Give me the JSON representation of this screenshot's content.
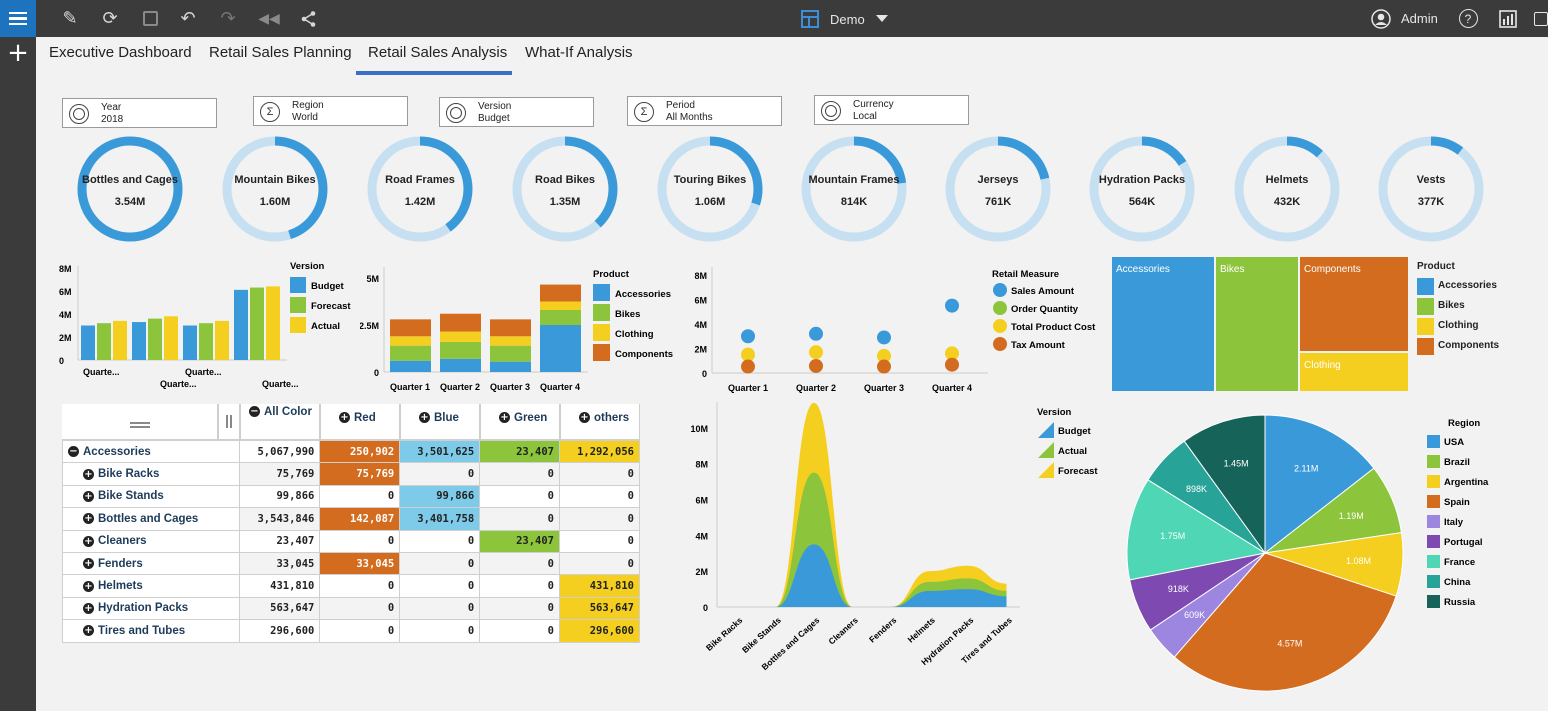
{
  "toolbar": {
    "menu_icon": "hamburger-menu-icon",
    "project_name": "Demo",
    "user_name": "Admin",
    "icons": [
      "pencil-icon",
      "refresh-icon",
      "save-icon",
      "undo-icon",
      "redo-icon",
      "rewind-icon",
      "share-icon"
    ]
  },
  "tabs": [
    {
      "label": "Executive Dashboard",
      "active": false
    },
    {
      "label": "Retail Sales Planning",
      "active": false
    },
    {
      "label": "Retail Sales Analysis",
      "active": true
    },
    {
      "label": "What-If Analysis",
      "active": false
    }
  ],
  "filters": [
    {
      "name": "Year",
      "value": "2018"
    },
    {
      "name": "Region",
      "value": "World"
    },
    {
      "name": "Version",
      "value": "Budget"
    },
    {
      "name": "Period",
      "value": "All Months"
    },
    {
      "name": "Currency",
      "value": "Local"
    }
  ],
  "kpis": [
    {
      "label": "Bottles and Cages",
      "value": "3.54M",
      "fraction": 1.0
    },
    {
      "label": "Mountain Bikes",
      "value": "1.60M",
      "fraction": 0.45
    },
    {
      "label": "Road Frames",
      "value": "1.42M",
      "fraction": 0.4
    },
    {
      "label": "Road Bikes",
      "value": "1.35M",
      "fraction": 0.38
    },
    {
      "label": "Touring Bikes",
      "value": "1.06M",
      "fraction": 0.3
    },
    {
      "label": "Mountain Frames",
      "value": "814K",
      "fraction": 0.23
    },
    {
      "label": "Jerseys",
      "value": "761K",
      "fraction": 0.215
    },
    {
      "label": "Hydration Packs",
      "value": "564K",
      "fraction": 0.16
    },
    {
      "label": "Helmets",
      "value": "432K",
      "fraction": 0.12
    },
    {
      "label": "Vests",
      "value": "377K",
      "fraction": 0.105
    }
  ],
  "colors": {
    "accessories": "#3a9ad9",
    "bikes": "#8cc43c",
    "clothing": "#f4cf1f",
    "components": "#d36c1e",
    "donut_track": "#c6e0f2",
    "donut_fill": "#3a9ad9"
  },
  "chart_data": [
    {
      "type": "bar",
      "id": "version-bars",
      "categories": [
        "Quarte...",
        "Quarte...",
        "Quarte...",
        "Quarte..."
      ],
      "series": [
        {
          "name": "Budget",
          "values": [
            3.0,
            3.3,
            3.0,
            6.1
          ]
        },
        {
          "name": "Forecast",
          "values": [
            3.2,
            3.6,
            3.2,
            6.3
          ]
        },
        {
          "name": "Actual",
          "values": [
            3.4,
            3.8,
            3.4,
            6.4
          ]
        }
      ],
      "yticks": [
        "8M",
        "6M",
        "4M",
        "2M",
        "0"
      ],
      "ylim": [
        0,
        8
      ],
      "legend_title": "Version"
    },
    {
      "type": "bar",
      "id": "product-stacked",
      "stacked": true,
      "categories": [
        "Quarter 1",
        "Quarter 2",
        "Quarter 3",
        "Quarter 4"
      ],
      "series": [
        {
          "name": "Accessories",
          "values": [
            0.6,
            0.7,
            0.55,
            2.5
          ]
        },
        {
          "name": "Bikes",
          "values": [
            0.8,
            0.9,
            0.85,
            0.8
          ]
        },
        {
          "name": "Clothing",
          "values": [
            0.5,
            0.55,
            0.5,
            0.45
          ]
        },
        {
          "name": "Components",
          "values": [
            0.9,
            0.95,
            0.9,
            0.9
          ]
        }
      ],
      "yticks": [
        "5M",
        "2.5M",
        "0"
      ],
      "ylim": [
        0,
        5
      ],
      "legend_title": "Product"
    },
    {
      "type": "scatter",
      "id": "retail-measure",
      "categories": [
        "Quarter 1",
        "Quarter 2",
        "Quarter 3",
        "Quarter 4"
      ],
      "series": [
        {
          "name": "Sales Amount",
          "values": [
            3.0,
            3.2,
            2.9,
            5.5
          ]
        },
        {
          "name": "Order Quantity",
          "values": [
            0,
            0,
            0,
            0
          ]
        },
        {
          "name": "Total Product Cost",
          "values": [
            1.5,
            1.7,
            1.4,
            1.6
          ]
        },
        {
          "name": "Tax Amount",
          "values": [
            0.2,
            0.25,
            0.2,
            0.35
          ]
        }
      ],
      "yticks": [
        "8M",
        "6M",
        "4M",
        "2M",
        "0"
      ],
      "ylim": [
        0,
        8
      ],
      "legend_title": "Retail Measure"
    },
    {
      "type": "treemap",
      "id": "product-treemap",
      "items": [
        {
          "name": "Accessories",
          "value": 10.3
        },
        {
          "name": "Bikes",
          "value": 8.9
        },
        {
          "name": "Components",
          "value": 8.4
        },
        {
          "name": "Clothing",
          "value": 3.0
        }
      ],
      "legend_title": "Product"
    },
    {
      "type": "area",
      "id": "version-area",
      "categories": [
        "Bike Racks",
        "Bike Stands",
        "Bottles and Cages",
        "Cleaners",
        "Fenders",
        "Helmets",
        "Hydration Packs",
        "Tires and Tubes"
      ],
      "series": [
        {
          "name": "Budget",
          "values": [
            0.0,
            0.0,
            3.5,
            0.0,
            0.0,
            0.9,
            1.0,
            0.6
          ]
        },
        {
          "name": "Actual",
          "values": [
            0.0,
            0.0,
            4.0,
            0.0,
            0.0,
            0.5,
            0.6,
            0.3
          ]
        },
        {
          "name": "Forecast",
          "values": [
            0.0,
            0.0,
            3.9,
            0.0,
            0.0,
            0.6,
            0.7,
            0.4
          ]
        }
      ],
      "yticks": [
        "10M",
        "8M",
        "6M",
        "4M",
        "2M",
        "0"
      ],
      "ylim": [
        0,
        11
      ],
      "legend_title": "Version"
    },
    {
      "type": "pie",
      "id": "region-pie",
      "legend_title": "Region",
      "slices": [
        {
          "name": "USA",
          "label": "2.11M",
          "value": 2.11
        },
        {
          "name": "Brazil",
          "label": "1.19M",
          "value": 1.19
        },
        {
          "name": "Argentina",
          "label": "1.08M",
          "value": 1.08
        },
        {
          "name": "Spain",
          "label": "4.57M",
          "value": 4.57
        },
        {
          "name": "Italy",
          "label": "609K",
          "value": 0.609
        },
        {
          "name": "Portugal",
          "label": "918K",
          "value": 0.918
        },
        {
          "name": "France",
          "label": "1.75M",
          "value": 1.75
        },
        {
          "name": "China",
          "label": "898K",
          "value": 0.898
        },
        {
          "name": "Russia",
          "label": "1.45M",
          "value": 1.45
        }
      ]
    }
  ],
  "pivot": {
    "col_headers": [
      "All Color",
      "Red",
      "Blue",
      "Green",
      "others"
    ],
    "rows": [
      {
        "label": "Accessories",
        "expanded": true,
        "values": [
          "5,067,990",
          "250,902",
          "3,501,625",
          "23,407",
          "1,292,056"
        ]
      },
      {
        "label": "Bike Racks",
        "values": [
          "75,769",
          "75,769",
          "0",
          "0",
          "0"
        ]
      },
      {
        "label": "Bike Stands",
        "values": [
          "99,866",
          "0",
          "99,866",
          "0",
          "0"
        ]
      },
      {
        "label": "Bottles and Cages",
        "values": [
          "3,543,846",
          "142,087",
          "3,401,758",
          "0",
          "0"
        ]
      },
      {
        "label": "Cleaners",
        "values": [
          "23,407",
          "0",
          "0",
          "23,407",
          "0"
        ]
      },
      {
        "label": "Fenders",
        "values": [
          "33,045",
          "33,045",
          "0",
          "0",
          "0"
        ]
      },
      {
        "label": "Helmets",
        "values": [
          "431,810",
          "0",
          "0",
          "0",
          "431,810"
        ]
      },
      {
        "label": "Hydration Packs",
        "values": [
          "563,647",
          "0",
          "0",
          "0",
          "563,647"
        ]
      },
      {
        "label": "Tires and Tubes",
        "values": [
          "296,600",
          "0",
          "0",
          "0",
          "296,600"
        ]
      }
    ]
  }
}
